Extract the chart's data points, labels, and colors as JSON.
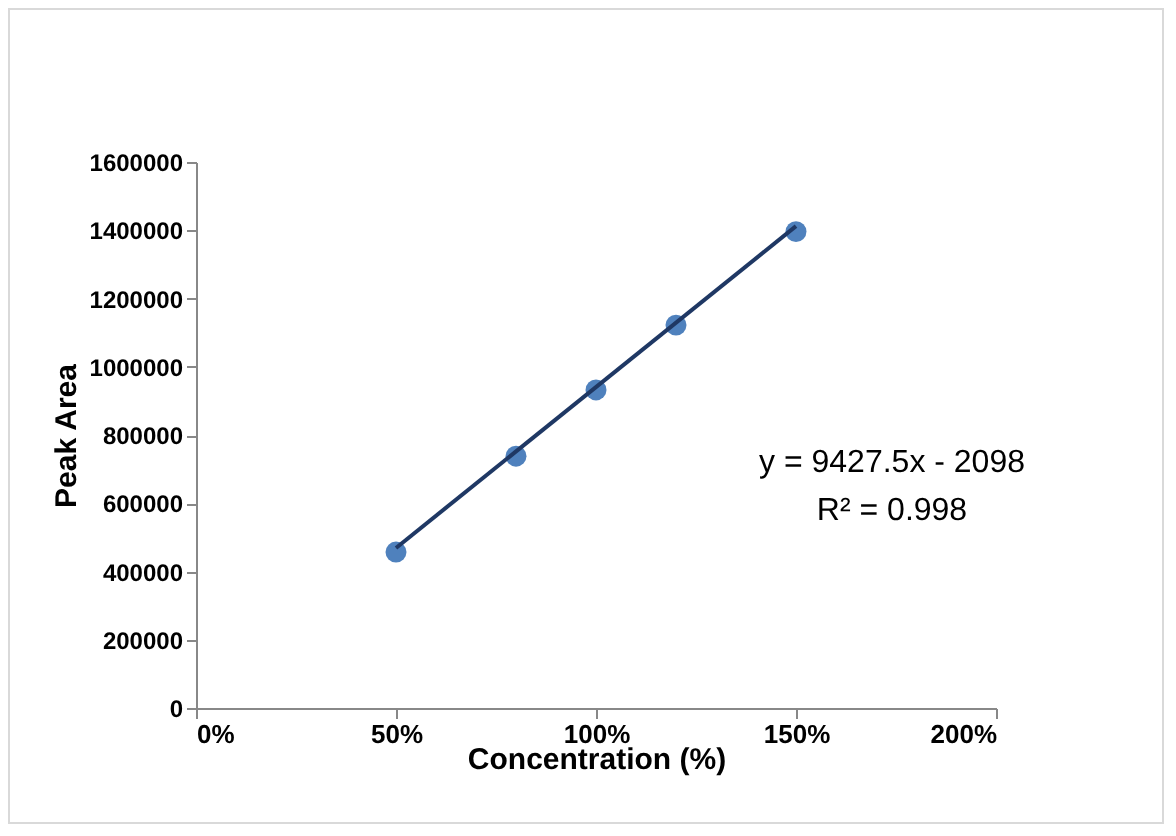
{
  "chart_data": {
    "type": "scatter",
    "xlabel": "Concentration (%)",
    "ylabel": "Peak Area",
    "x": [
      50,
      80,
      100,
      120,
      150
    ],
    "series": [
      {
        "color": "#4f81bd",
        "values": [
          457000,
          738000,
          932000,
          1122000,
          1396000
        ]
      },
      {
        "type": "line",
        "marker": "none",
        "color": "#1f3864",
        "x": [
          50,
          150
        ],
        "values": [
          469000,
          1412000
        ]
      }
    ],
    "xlim": [
      0,
      200
    ],
    "xticks": [
      {
        "value": 0,
        "label": "0%"
      },
      {
        "value": 50,
        "label": "50%"
      },
      {
        "value": 100,
        "label": "100%"
      },
      {
        "value": 150,
        "label": "150%"
      },
      {
        "value": 200,
        "label": "200%"
      }
    ],
    "ylim": [
      0,
      1600000
    ],
    "yticks": [
      0,
      200000,
      400000,
      600000,
      800000,
      1000000,
      1200000,
      1400000,
      1600000
    ],
    "grid": false,
    "marker": "circle",
    "annotations": [
      "y = 9427.5x - 2098",
      "R² = 0.998"
    ]
  }
}
